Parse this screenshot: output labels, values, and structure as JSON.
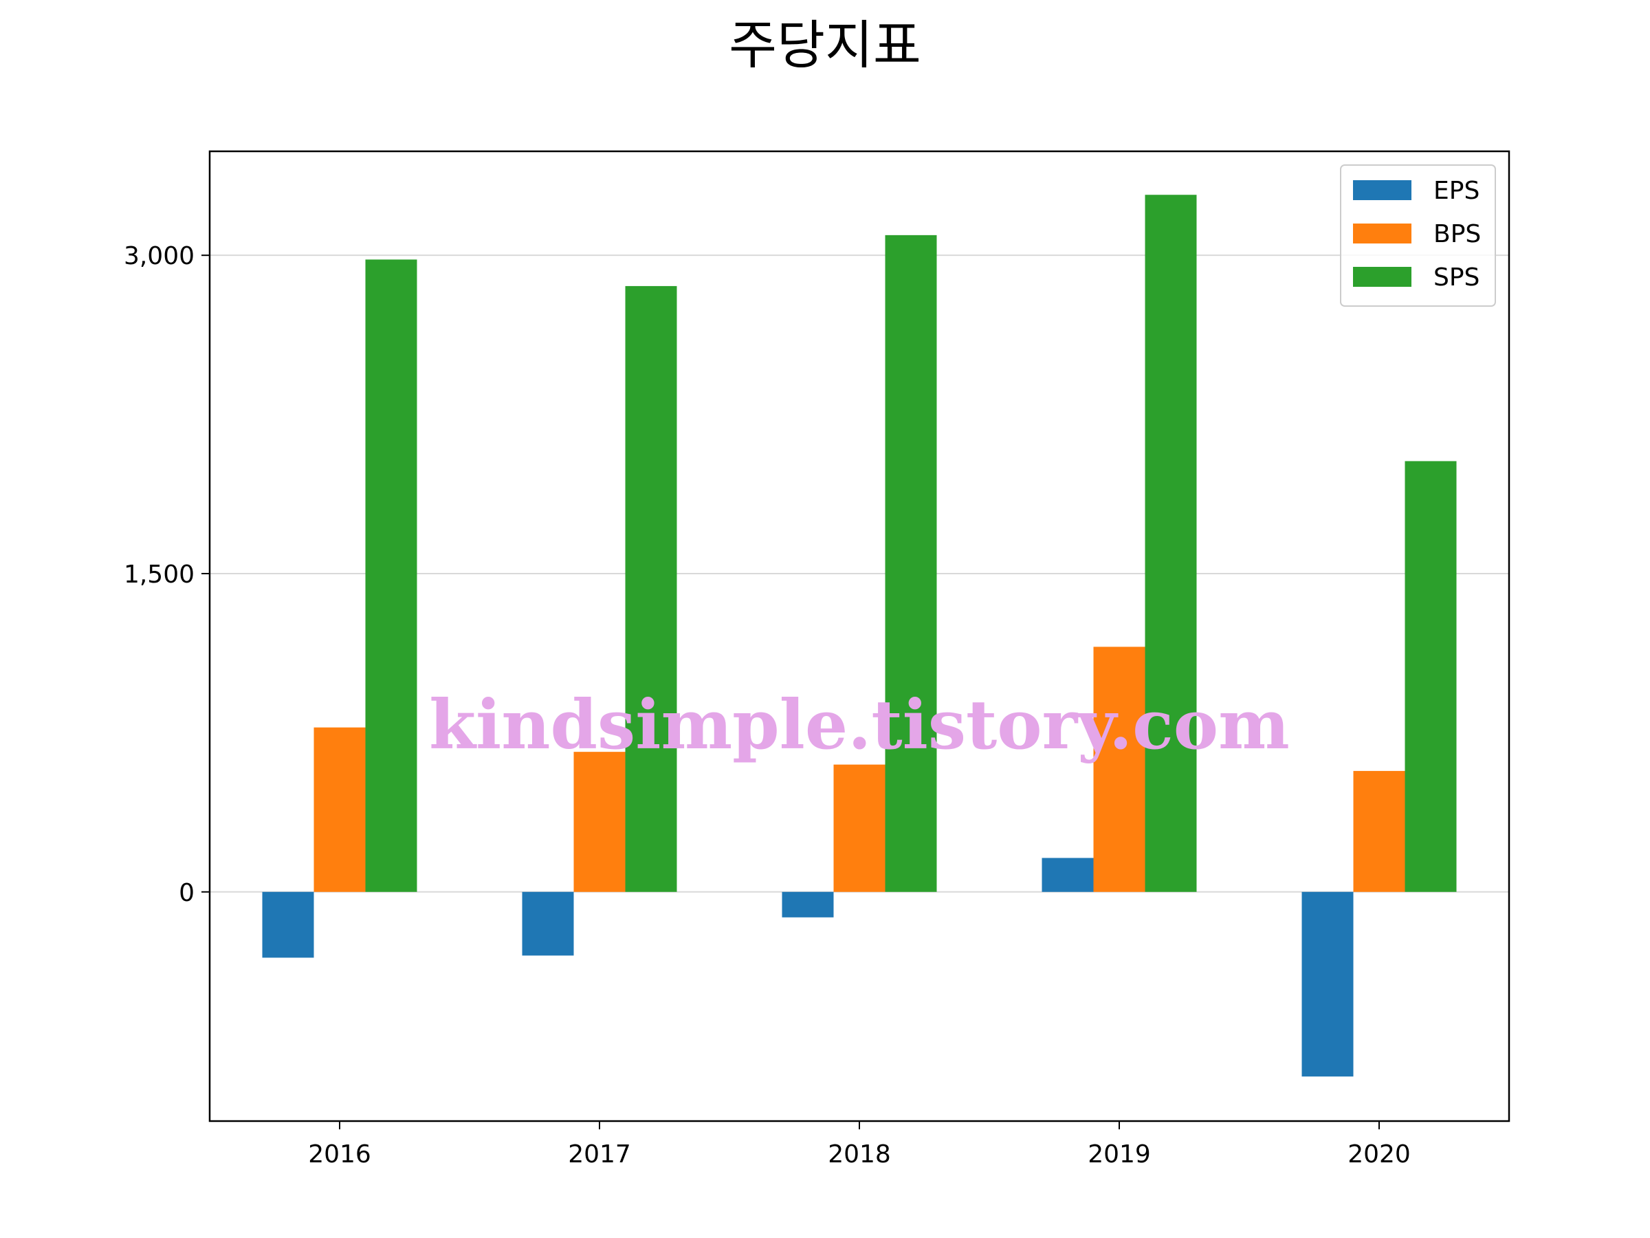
{
  "chart_data": {
    "type": "bar",
    "title": "주당지표",
    "categories": [
      "2016",
      "2017",
      "2018",
      "2019",
      "2020"
    ],
    "series": [
      {
        "name": "EPS",
        "color": "#1f77b4",
        "values": [
          -310,
          -300,
          -120,
          160,
          -870
        ]
      },
      {
        "name": "BPS",
        "color": "#ff7f0e",
        "values": [
          775,
          660,
          600,
          1155,
          570
        ]
      },
      {
        "name": "SPS",
        "color": "#2ca02c",
        "values": [
          2980,
          2855,
          3095,
          3285,
          2030
        ]
      }
    ],
    "yticks": [
      0,
      1500,
      3000
    ],
    "ytick_labels": [
      "0",
      "1,500",
      "3,000"
    ],
    "ylim": [
      -1080,
      3490
    ],
    "grid": "y",
    "legend_position": "top-right",
    "xlabel": "",
    "ylabel": ""
  },
  "watermark": "kindsimple.tistory.com"
}
